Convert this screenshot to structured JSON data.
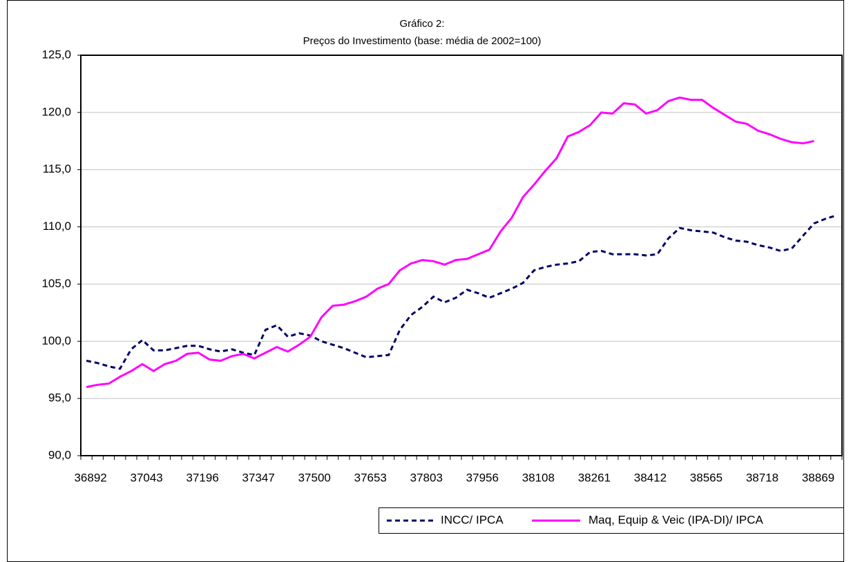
{
  "chart_data": {
    "type": "line",
    "title": "Gráfico 2:",
    "subtitle": "Preços do Investimento (base: média de 2002=100)",
    "categories": [
      "36892",
      null,
      null,
      null,
      null,
      "37043",
      null,
      null,
      null,
      null,
      "37196",
      null,
      null,
      null,
      null,
      "37347",
      null,
      null,
      null,
      null,
      "37500",
      null,
      null,
      null,
      null,
      "37653",
      null,
      null,
      null,
      null,
      "37803",
      null,
      null,
      null,
      null,
      "37956",
      null,
      null,
      null,
      null,
      "38108",
      null,
      null,
      null,
      null,
      "38261",
      null,
      null,
      null,
      null,
      "38412",
      null,
      null,
      null,
      null,
      "38565",
      null,
      null,
      null,
      null,
      "38718",
      null,
      null,
      null,
      null,
      "38869",
      null,
      null
    ],
    "series": [
      {
        "name": "INCC/ IPCA",
        "color": "#000066",
        "dash": true,
        "values": [
          98.3,
          98.1,
          97.8,
          97.6,
          99.3,
          100.1,
          99.2,
          99.2,
          99.4,
          99.6,
          99.6,
          99.3,
          99.1,
          99.3,
          99.0,
          98.8,
          101.0,
          101.4,
          100.4,
          100.7,
          100.5,
          100.0,
          99.7,
          99.4,
          99.0,
          98.6,
          98.7,
          98.8,
          101.0,
          102.3,
          103.0,
          103.9,
          103.4,
          103.8,
          104.5,
          104.2,
          103.8,
          104.2,
          104.6,
          105.1,
          106.2,
          106.5,
          106.7,
          106.8,
          107.0,
          107.8,
          107.9,
          107.6,
          107.6,
          107.6,
          107.5,
          107.6,
          109.0,
          109.9,
          109.7,
          109.6,
          109.5,
          109.1,
          108.8,
          108.7,
          108.4,
          108.2,
          107.9,
          108.1,
          109.2,
          110.3,
          110.7,
          111.0
        ]
      },
      {
        "name": "Maq, Equip & Veic (IPA-DI)/ IPCA",
        "color": "#ff00ff",
        "dash": false,
        "values": [
          96.0,
          96.2,
          96.3,
          96.9,
          97.4,
          98.0,
          97.4,
          98.0,
          98.3,
          98.9,
          99.0,
          98.4,
          98.3,
          98.7,
          98.9,
          98.5,
          99.0,
          99.5,
          99.1,
          99.7,
          100.4,
          102.1,
          103.1,
          103.2,
          103.5,
          103.9,
          104.6,
          105.0,
          106.2,
          106.8,
          107.1,
          107.0,
          106.7,
          107.1,
          107.2,
          107.6,
          108.0,
          109.6,
          110.8,
          112.6,
          113.7,
          114.9,
          116.0,
          117.9,
          118.3,
          118.9,
          120.0,
          119.9,
          120.8,
          120.7,
          119.9,
          120.2,
          121.0,
          121.3,
          121.1,
          121.1,
          120.4,
          119.8,
          119.2,
          119.0,
          118.4,
          118.1,
          117.7,
          117.4,
          117.3,
          117.5,
          null,
          null
        ]
      }
    ],
    "ylim": [
      90,
      125
    ],
    "yticks": [
      {
        "value": 90,
        "label": "90,0"
      },
      {
        "value": 95,
        "label": "95,0"
      },
      {
        "value": 100,
        "label": "100,0"
      },
      {
        "value": 105,
        "label": "105,0"
      },
      {
        "value": 110,
        "label": "110,0"
      },
      {
        "value": 115,
        "label": "115,0"
      },
      {
        "value": 120,
        "label": "120,0"
      },
      {
        "value": 125,
        "label": "125,0"
      }
    ],
    "grid": true,
    "legend": "bottom-right"
  }
}
